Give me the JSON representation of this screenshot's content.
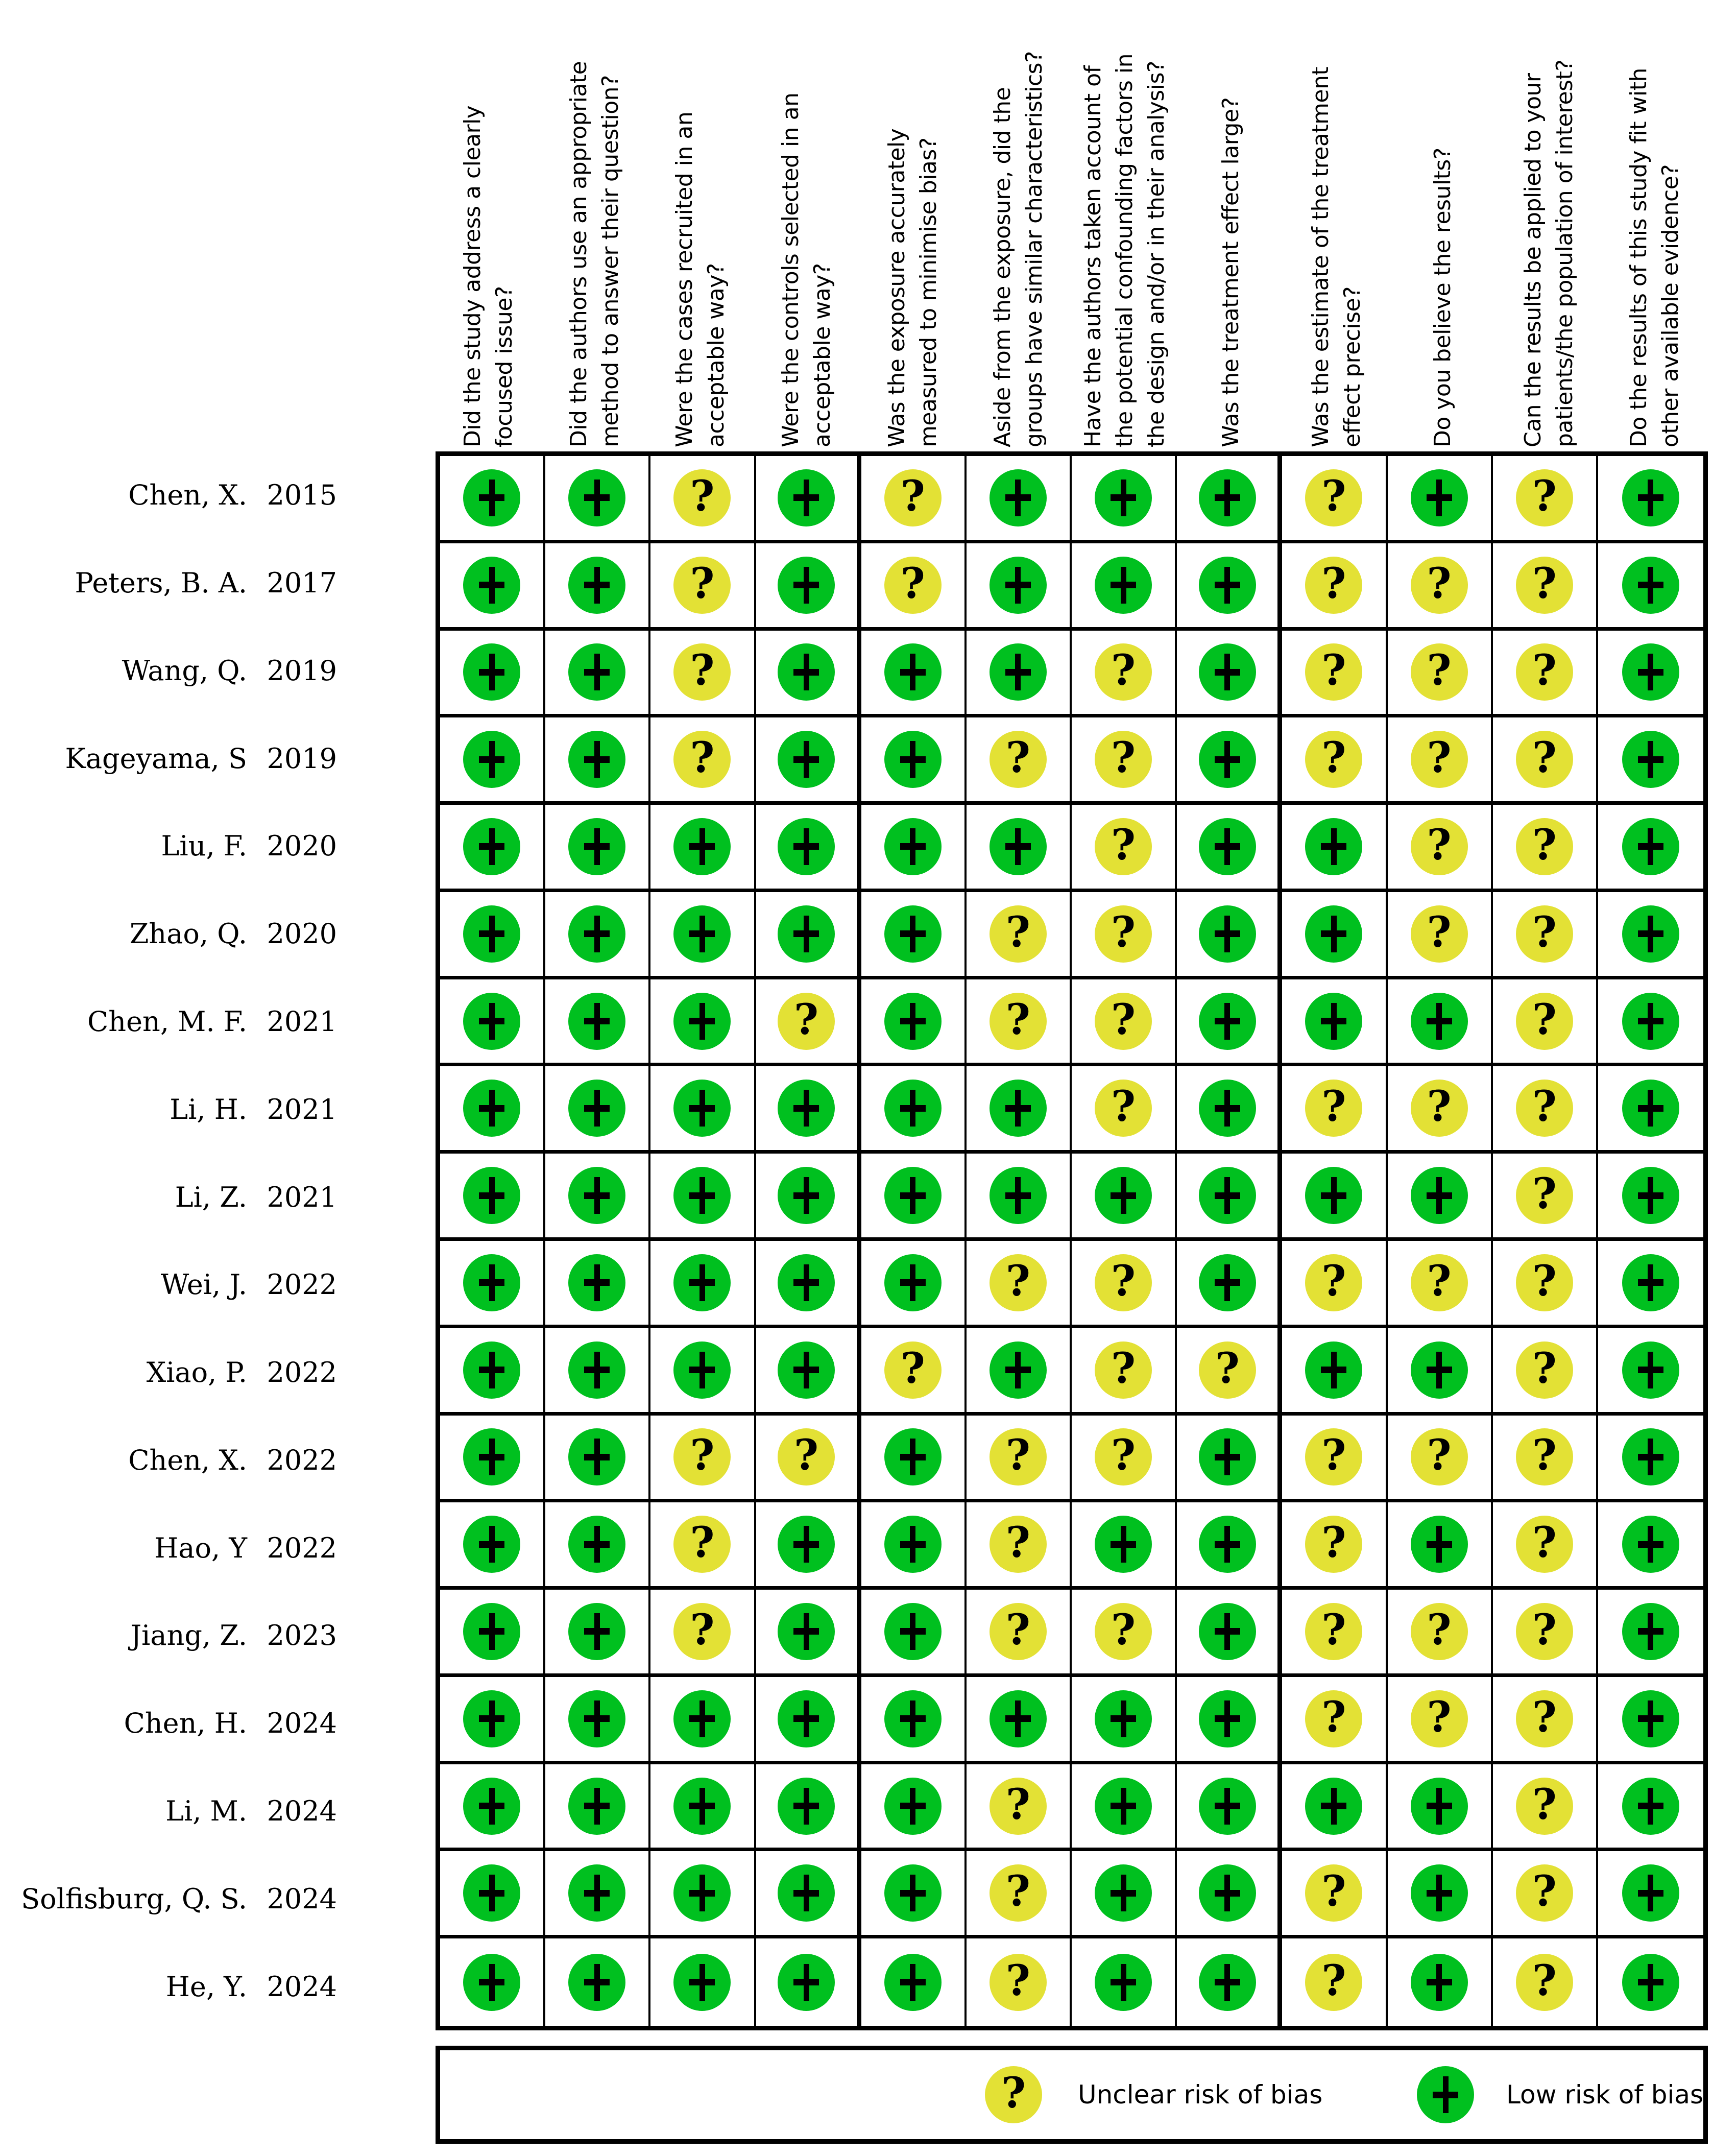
{
  "chart_data": {
    "type": "heatmap",
    "title": "",
    "legend_position": "bottom",
    "x_categories": [
      "Did the study address a clearly focused issue?",
      "Did the authors use an appropriate method to answer their question?",
      "Were the cases recruited in an acceptable way?",
      "Were the controls selected in an acceptable way?",
      "Was the exposure accurately measured to minimise bias?",
      "Aside from the exposure, did the groups have similar characteristics?",
      "Have the authors taken account of the potential confounding factors in the design and/or in their analysis?",
      "Was the treatment effect large?",
      "Was the estimate of the treatment effect precise?",
      "Do you believe the results?",
      "Can the results be applied to your patients/the population of interest?",
      "Do the results of this study fit with other available evidence?"
    ],
    "x_categories_lines": [
      [
        "Did the study address a clearly",
        "focused issue?"
      ],
      [
        "Did the authors use an appropriate",
        "method to answer their question?"
      ],
      [
        "Were the cases recruited in an",
        "acceptable way?"
      ],
      [
        "Were the controls selected in an",
        "acceptable way?"
      ],
      [
        "Was the exposure accurately",
        "measured to minimise bias?"
      ],
      [
        "Aside from the exposure, did the",
        "groups have similar characteristics?"
      ],
      [
        "Have the authors taken account of",
        "the potential confounding factors in",
        "the design and/or in their analysis?"
      ],
      [
        "Was the treatment effect large?"
      ],
      [
        "Was the estimate of the treatment",
        "effect precise?"
      ],
      [
        "Do you believe the results?"
      ],
      [
        "Can the results be applied to your",
        "patients/the population of interest?"
      ],
      [
        "Do the results of this study fit with",
        "other available evidence?"
      ]
    ],
    "y_categories": [
      {
        "study": "Chen, X.",
        "year": "2015"
      },
      {
        "study": "Peters, B. A.",
        "year": "2017"
      },
      {
        "study": "Wang, Q.",
        "year": "2019"
      },
      {
        "study": "Kageyama, S",
        "year": "2019"
      },
      {
        "study": "Liu, F.",
        "year": "2020"
      },
      {
        "study": "Zhao, Q.",
        "year": "2020"
      },
      {
        "study": "Chen, M. F.",
        "year": "2021"
      },
      {
        "study": "Li, H.",
        "year": "2021"
      },
      {
        "study": "Li, Z.",
        "year": "2021"
      },
      {
        "study": "Wei, J.",
        "year": "2022"
      },
      {
        "study": "Xiao, P.",
        "year": "2022"
      },
      {
        "study": "Chen, X.",
        "year": "2022"
      },
      {
        "study": "Hao, Y",
        "year": "2022"
      },
      {
        "study": "Jiang, Z.",
        "year": "2023"
      },
      {
        "study": "Chen, H.",
        "year": "2024"
      },
      {
        "study": "Li, M.",
        "year": "2024"
      },
      {
        "study": "Solfisburg, Q. S.",
        "year": "2024"
      },
      {
        "study": "He, Y.",
        "year": "2024"
      }
    ],
    "values": [
      [
        "+",
        "+",
        "?",
        "+",
        "?",
        "+",
        "+",
        "+",
        "?",
        "+",
        "?",
        "+"
      ],
      [
        "+",
        "+",
        "?",
        "+",
        "?",
        "+",
        "+",
        "+",
        "?",
        "?",
        "?",
        "+"
      ],
      [
        "+",
        "+",
        "?",
        "+",
        "+",
        "+",
        "?",
        "+",
        "?",
        "?",
        "?",
        "+"
      ],
      [
        "+",
        "+",
        "?",
        "+",
        "+",
        "?",
        "?",
        "+",
        "?",
        "?",
        "?",
        "+"
      ],
      [
        "+",
        "+",
        "+",
        "+",
        "+",
        "+",
        "?",
        "+",
        "+",
        "?",
        "?",
        "+"
      ],
      [
        "+",
        "+",
        "+",
        "+",
        "+",
        "?",
        "?",
        "+",
        "+",
        "?",
        "?",
        "+"
      ],
      [
        "+",
        "+",
        "+",
        "?",
        "+",
        "?",
        "?",
        "+",
        "+",
        "+",
        "?",
        "+"
      ],
      [
        "+",
        "+",
        "+",
        "+",
        "+",
        "+",
        "?",
        "+",
        "?",
        "?",
        "?",
        "+"
      ],
      [
        "+",
        "+",
        "+",
        "+",
        "+",
        "+",
        "+",
        "+",
        "+",
        "+",
        "?",
        "+"
      ],
      [
        "+",
        "+",
        "+",
        "+",
        "+",
        "?",
        "?",
        "+",
        "?",
        "?",
        "?",
        "+"
      ],
      [
        "+",
        "+",
        "+",
        "+",
        "?",
        "+",
        "?",
        "?",
        "+",
        "+",
        "?",
        "+"
      ],
      [
        "+",
        "+",
        "?",
        "?",
        "+",
        "?",
        "?",
        "+",
        "?",
        "?",
        "?",
        "+"
      ],
      [
        "+",
        "+",
        "?",
        "+",
        "+",
        "?",
        "+",
        "+",
        "?",
        "+",
        "?",
        "+"
      ],
      [
        "+",
        "+",
        "?",
        "+",
        "+",
        "?",
        "?",
        "+",
        "?",
        "?",
        "?",
        "+"
      ],
      [
        "+",
        "+",
        "+",
        "+",
        "+",
        "+",
        "+",
        "+",
        "?",
        "?",
        "?",
        "+"
      ],
      [
        "+",
        "+",
        "+",
        "+",
        "+",
        "?",
        "+",
        "+",
        "+",
        "+",
        "?",
        "+"
      ],
      [
        "+",
        "+",
        "+",
        "+",
        "+",
        "?",
        "+",
        "+",
        "?",
        "+",
        "?",
        "+"
      ],
      [
        "+",
        "+",
        "+",
        "+",
        "+",
        "?",
        "+",
        "+",
        "?",
        "+",
        "?",
        "+"
      ]
    ],
    "value_meanings": {
      "+": "Low risk of bias",
      "?": "Unclear risk of bias"
    },
    "colors": {
      "low_risk": "#00c01f",
      "unclear_risk": "#e3e135",
      "line": "#000000",
      "background": "#ffffff"
    },
    "legend": [
      {
        "symbol": "?",
        "risk": "unclear",
        "label": "Unclear risk of bias"
      },
      {
        "symbol": "+",
        "risk": "low",
        "label": "Low risk of bias"
      }
    ]
  }
}
